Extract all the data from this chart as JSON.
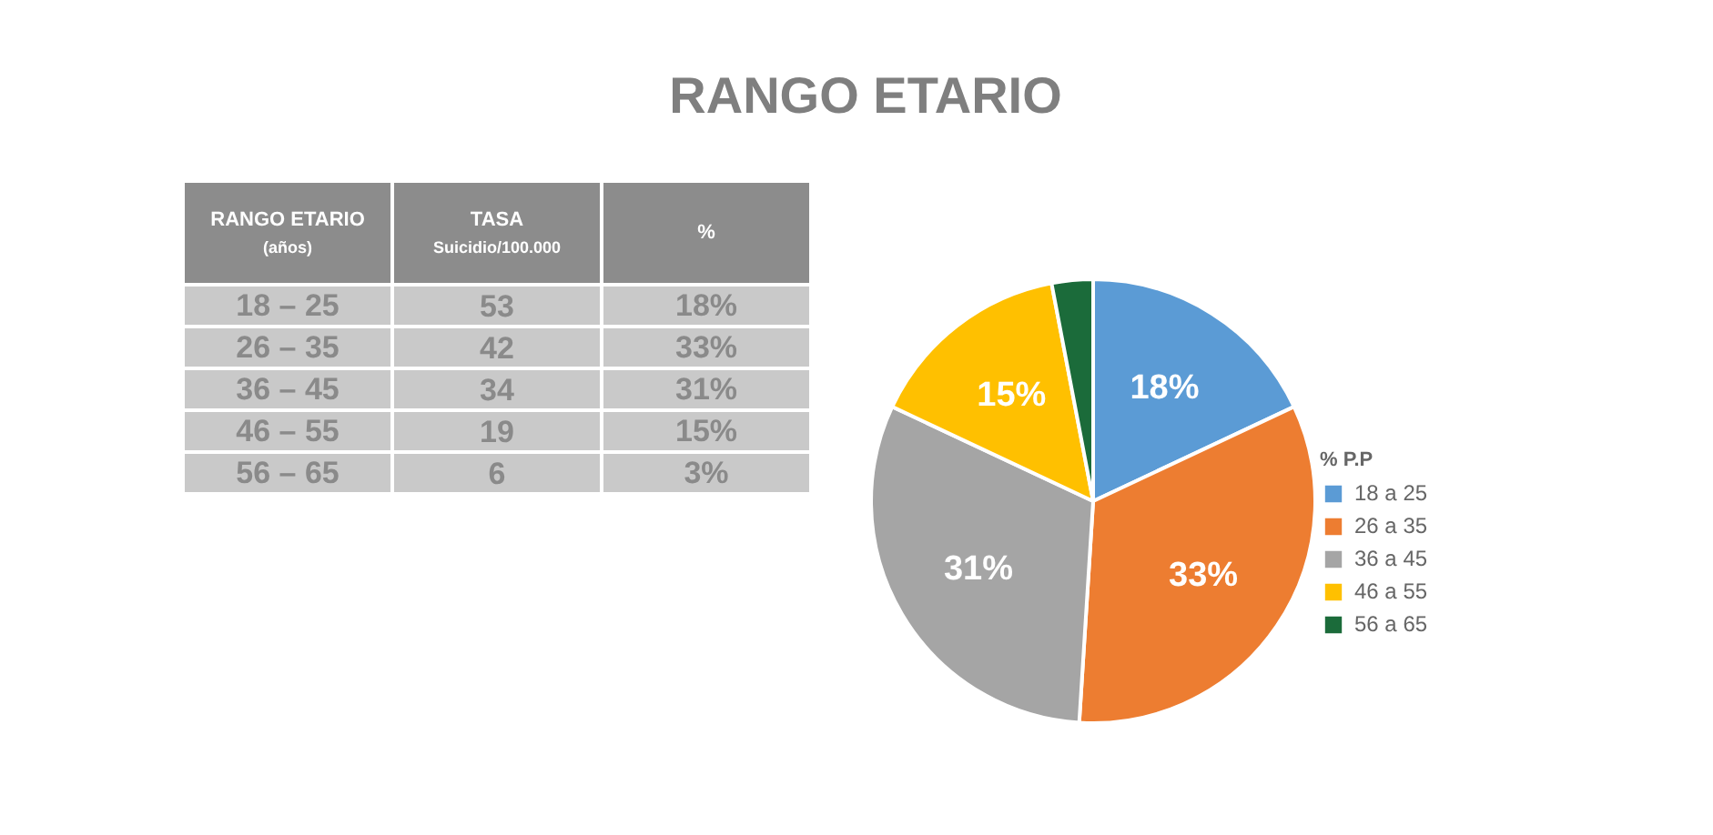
{
  "chart_data": [
    {
      "type": "other",
      "xlabel": "RANGO ETARIO (años)",
      "categories": [
        "18 – 25",
        "26 – 35",
        "36 – 45",
        "46 – 55",
        "56 – 65"
      ],
      "series": [
        {
          "name": "TASA Suicidio/100.000",
          "values": [
            53,
            42,
            34,
            19,
            6
          ]
        },
        {
          "name": "%",
          "values": [
            18,
            33,
            31,
            15,
            3
          ],
          "value_labels": [
            "18%",
            "33%",
            "31%",
            "15%",
            "3%"
          ]
        }
      ],
      "data_labels": true
    },
    {
      "type": "pie",
      "title": "RANGO ETARIO",
      "legend_title": "% P.P",
      "categories": [
        "18 a 25",
        "26 a 35",
        "36 a 45",
        "46 a 55",
        "56 a 65"
      ],
      "values": [
        18,
        33,
        31,
        15,
        3
      ],
      "colors": [
        "#5b9bd5",
        "#ed7d31",
        "#a5a5a5",
        "#ffc000",
        "#1b6b3a"
      ],
      "value_labels": [
        "18%",
        "33%",
        "31%",
        "15%",
        null
      ],
      "legend": "right"
    }
  ]
}
